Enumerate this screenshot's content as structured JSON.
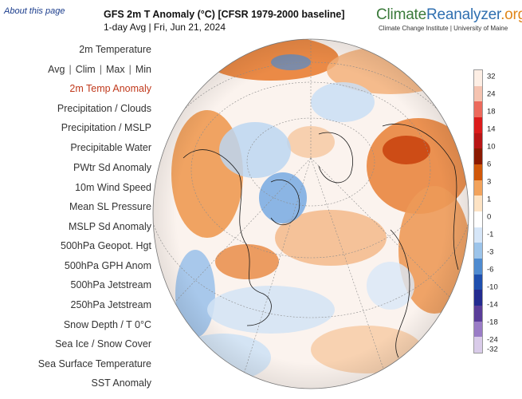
{
  "header": {
    "about_link": "About this page",
    "title": "GFS 2m T Anomaly (°C) [CFSR 1979-2000 baseline]",
    "subtitle": "1-day Avg | Fri, Jun 21, 2024",
    "brand_part1": "Climate",
    "brand_part2": "Reanalyzer",
    "brand_part3": ".org",
    "brand_sub": "Climate Change Institute | University of Maine"
  },
  "menu": {
    "temperature": "2m Temperature",
    "sub_avg": "Avg",
    "sub_clim": "Clim",
    "sub_max": "Max",
    "sub_min": "Min",
    "sep": "|",
    "items": [
      "2m Temp Anomaly",
      "Precipitation / Clouds",
      "Precipitation / MSLP",
      "Precipitable Water",
      "PWtr Sd Anomaly",
      "10m Wind Speed",
      "Mean SL Pressure",
      "MSLP Sd Anomaly",
      "500hPa Geopot. Hgt",
      "500hPa GPH Anom",
      "500hPa Jetstream",
      "250hPa Jetstream",
      "Snow Depth / T 0°C",
      "Sea Ice / Snow Cover",
      "Sea Surface Temperature",
      "SST Anomaly"
    ],
    "active_item": "2m Temp Anomaly"
  },
  "colorbar": {
    "labels": [
      "32",
      "24",
      "18",
      "14",
      "10",
      "6",
      "3",
      "1",
      "0",
      "-1",
      "-3",
      "-6",
      "-10",
      "-14",
      "-18",
      "-24",
      "-32"
    ],
    "colors": [
      "#fdeee4",
      "#f5c3b0",
      "#ec6a5c",
      "#db1b1b",
      "#b81515",
      "#8b1a00",
      "#d1580a",
      "#f2a35c",
      "#fde3c4",
      "#ffffff",
      "#d6e6f8",
      "#9cc4ea",
      "#4f8bd0",
      "#1f4fae",
      "#232b8f",
      "#5a3d99",
      "#9a7cc6",
      "#d9cbe9"
    ]
  }
}
